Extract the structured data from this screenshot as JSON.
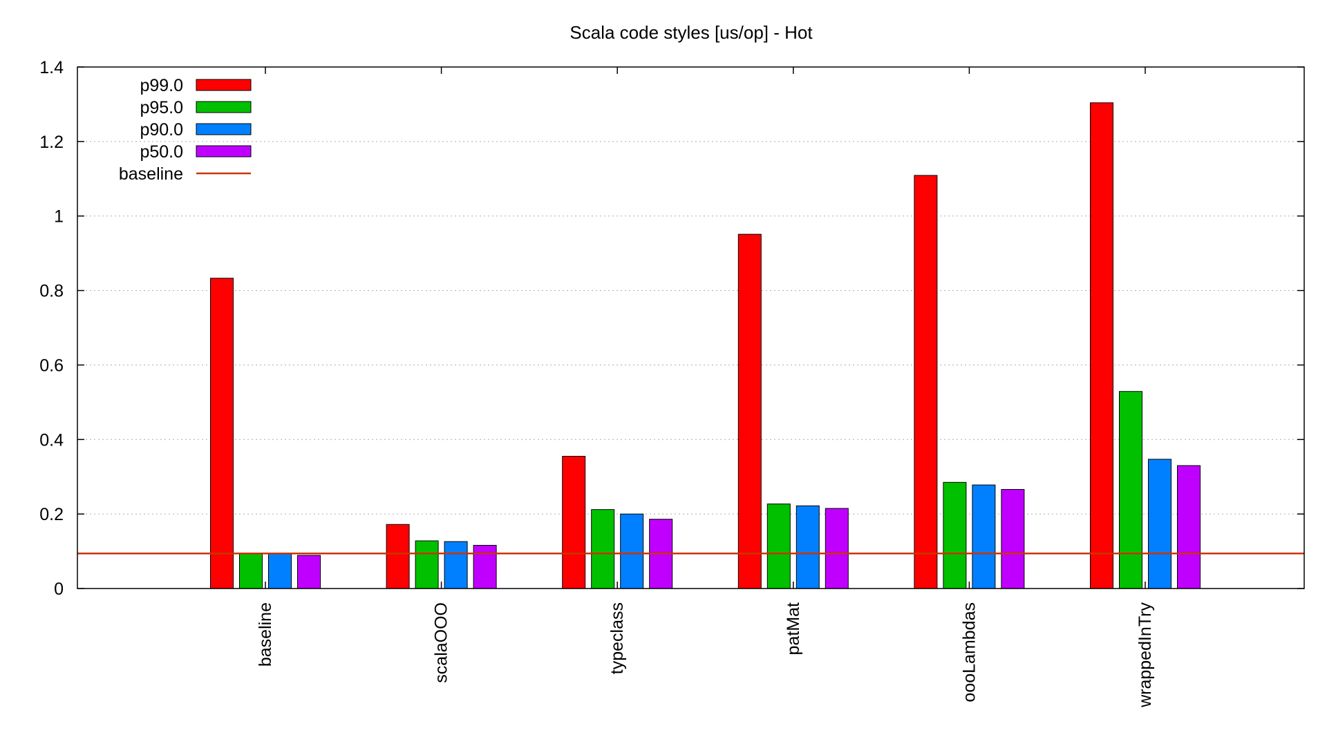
{
  "chart_data": {
    "type": "bar",
    "title": "Scala code styles [us/op] - Hot",
    "xlabel": "",
    "ylabel": "",
    "ylim": [
      0,
      1.4
    ],
    "yticks": [
      0,
      0.2,
      0.4,
      0.6,
      0.8,
      1,
      1.2,
      1.4
    ],
    "ytick_labels": [
      "0",
      "0.2",
      "0.4",
      "0.6",
      "0.8",
      "1",
      "1.2",
      "1.4"
    ],
    "grid": true,
    "legend_position": "top-left",
    "categories": [
      "baseline",
      "scalaOOO",
      "typeclass",
      "patMat",
      "oooLambdas",
      "wrappedInTry"
    ],
    "series": [
      {
        "name": "p99.0",
        "color": "#ff0000",
        "values": [
          0.833,
          0.172,
          0.355,
          0.951,
          1.109,
          1.304
        ]
      },
      {
        "name": "p95.0",
        "color": "#00c000",
        "values": [
          0.094,
          0.128,
          0.212,
          0.227,
          0.285,
          0.529
        ]
      },
      {
        "name": "p90.0",
        "color": "#0080ff",
        "values": [
          0.094,
          0.126,
          0.2,
          0.222,
          0.278,
          0.347
        ]
      },
      {
        "name": "p50.0",
        "color": "#c000ff",
        "values": [
          0.089,
          0.116,
          0.186,
          0.215,
          0.266,
          0.33
        ]
      }
    ],
    "baseline": {
      "name": "baseline",
      "color": "#cc3300",
      "value": 0.094
    }
  }
}
